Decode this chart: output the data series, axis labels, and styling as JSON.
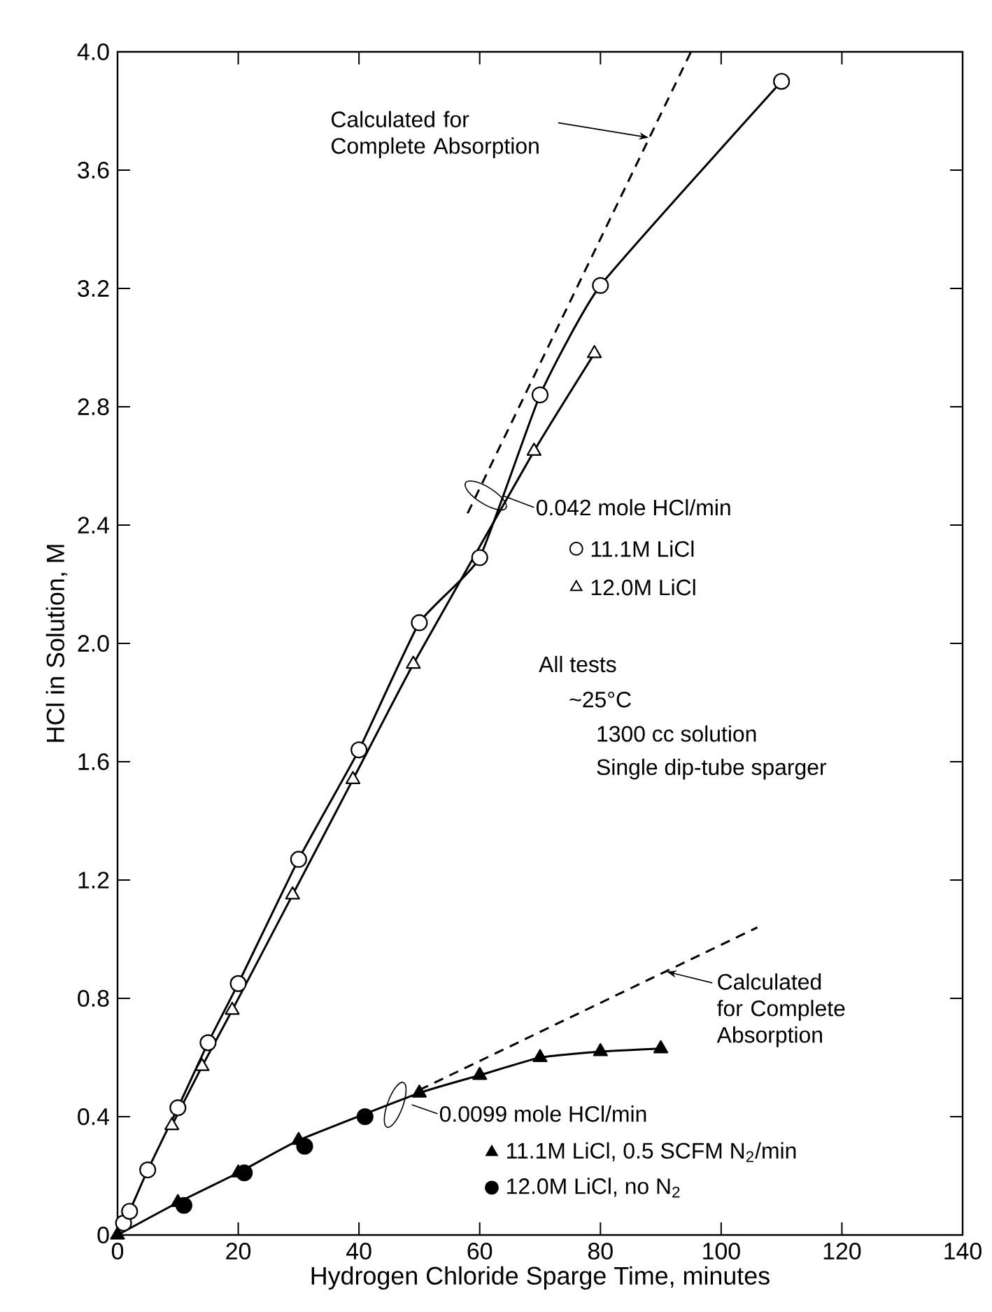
{
  "chart_data": {
    "type": "line",
    "xlabel": "Hydrogen Chloride Sparge Time, minutes",
    "ylabel": "HCl in Solution, M",
    "xlim": [
      0,
      140
    ],
    "ylim": [
      0,
      4.0
    ],
    "xticks": [
      0,
      20,
      40,
      60,
      80,
      100,
      120,
      140
    ],
    "yticks": [
      0,
      0.4,
      0.8,
      1.2,
      1.6,
      {
        "value": 2.0,
        "label": "2.0"
      },
      2.4,
      2.8,
      3.2,
      3.6,
      {
        "value": 4.0,
        "label": "4.0"
      }
    ],
    "legend": "right",
    "grid": false,
    "series": [
      {
        "name": "11.1M LiCl",
        "color": "#ffffff",
        "marker": "circle",
        "line_style": "solid",
        "x": [
          1,
          2,
          5,
          10,
          15,
          20,
          30,
          40,
          50,
          60,
          70,
          80,
          110
        ],
        "values": [
          0.04,
          0.08,
          0.22,
          0.43,
          0.65,
          0.85,
          1.27,
          1.64,
          2.07,
          2.29,
          2.84,
          3.21,
          3.9
        ]
      },
      {
        "name": "12.0M LiCl",
        "color": "#ffffff",
        "marker": "triangle",
        "line_style": "solid",
        "x": [
          9,
          14,
          19,
          29,
          39,
          49,
          69,
          79
        ],
        "values": [
          0.37,
          0.57,
          0.76,
          1.15,
          1.54,
          1.93,
          2.65,
          2.98
        ]
      },
      {
        "name": "11.1M LiCl, 0.5 SCFM N$_{2}$/min",
        "color": "#000000",
        "marker": "triangle",
        "line_style": "solid",
        "x": [
          0,
          10,
          20,
          30,
          50,
          60,
          70,
          80,
          90
        ],
        "values": [
          0.0,
          0.11,
          0.21,
          0.32,
          0.48,
          0.54,
          0.6,
          0.62,
          0.63
        ]
      },
      {
        "name": "12.0M LiCl, no N$_{2}$",
        "type": "scatter",
        "color": "#000000",
        "marker": "circle",
        "x": [
          11,
          21,
          31,
          41
        ],
        "values": [
          0.1,
          0.21,
          0.3,
          0.4
        ]
      },
      {
        "color": "#000000",
        "marker": "none",
        "line_style": "dashed",
        "x": [
          58,
          95
        ],
        "values": [
          2.44,
          4.0
        ]
      },
      {
        "color": "#000000",
        "marker": "none",
        "line_style": "dashed",
        "x": [
          50,
          106
        ],
        "values": [
          0.49,
          1.04
        ]
      }
    ],
    "annotations": [
      {
        "text": "Calculated for Complete Absorption",
        "x": 88,
        "y": 3.71
      },
      {
        "text": "0.042 mole HCl/min",
        "x": 61,
        "y": 2.5
      },
      "All tests",
      "~25°C",
      "1300 cc solution",
      "Single dip-tube sparger",
      {
        "text": "Calculated for Complete Absorption",
        "x": 91,
        "y": 0.89
      },
      {
        "text": "0.0099 mole HCl/min",
        "x": 46,
        "y": 0.44
      }
    ]
  }
}
